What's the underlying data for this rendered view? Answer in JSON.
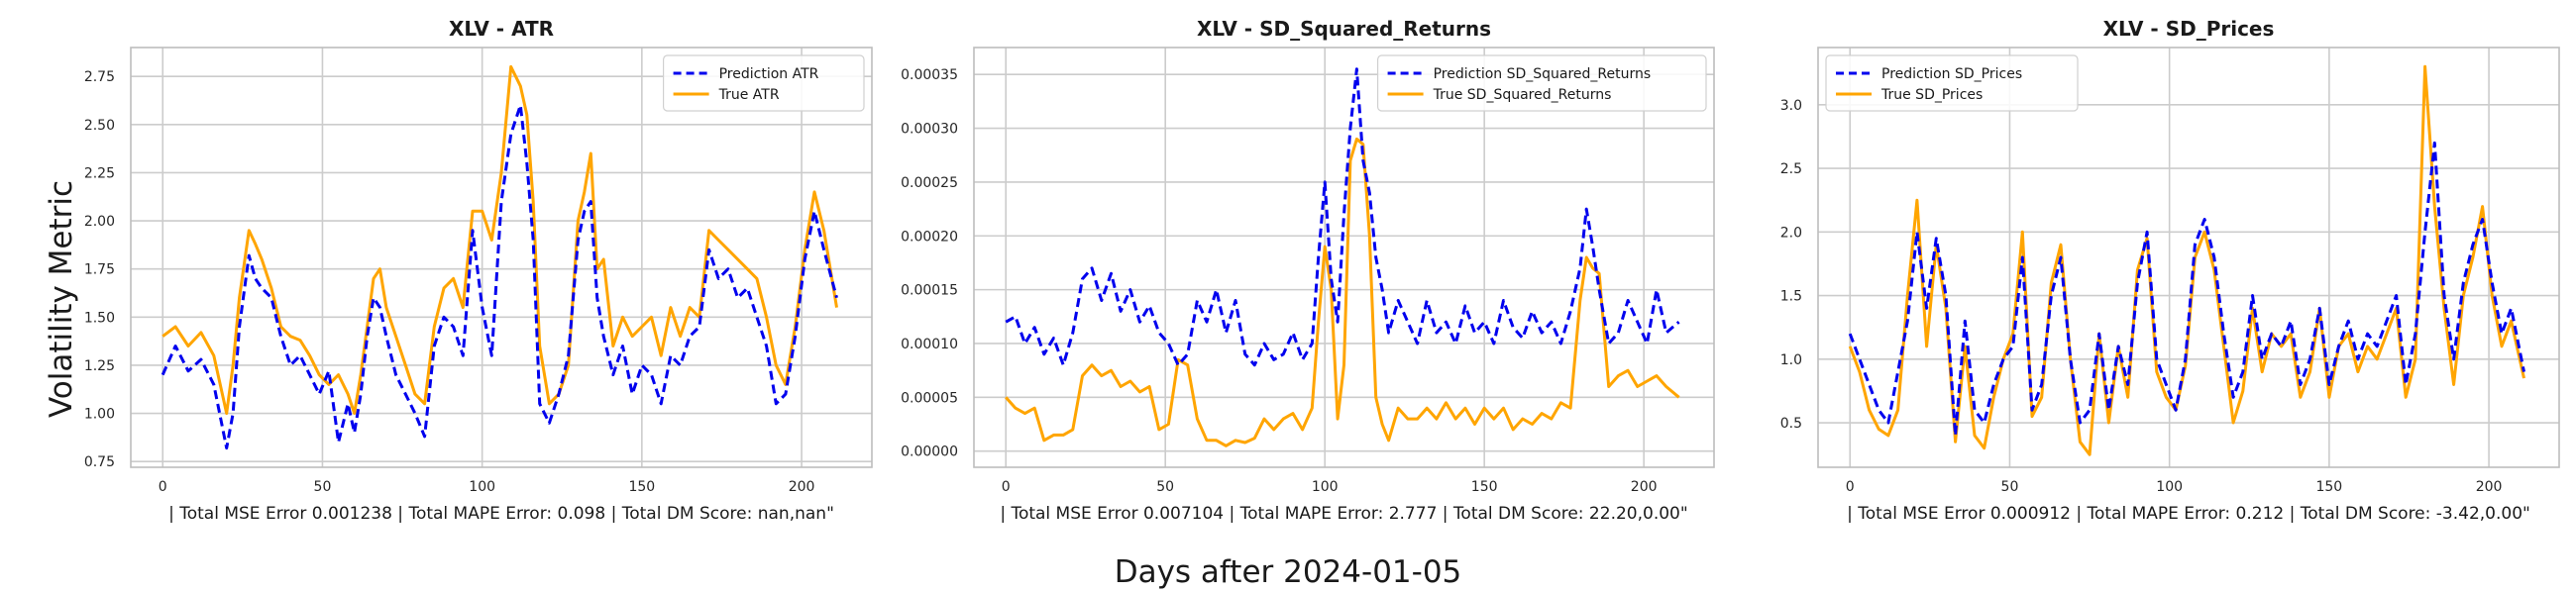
{
  "figure": {
    "supxlabel": "Days after 2024-01-05",
    "supylabel": "Volatility Metric"
  },
  "colors": {
    "prediction": "#0000ee",
    "true": "#ffa500",
    "grid": "#cccccc",
    "frame": "#bdbdbd"
  },
  "chart_data": [
    {
      "type": "line",
      "title": "XLV - ATR",
      "xlabel": "| Total MSE Error 0.001238 | Total MAPE Error: 0.098 | Total DM Score: nan,nan\"",
      "xlim": [
        -10,
        222
      ],
      "ylim": [
        0.72,
        2.9
      ],
      "xticks": [
        0,
        50,
        100,
        150,
        200
      ],
      "yticks": [
        0.75,
        1.0,
        1.25,
        1.5,
        1.75,
        2.0,
        2.25,
        2.5,
        2.75
      ],
      "ytick_labels": [
        "0.75",
        "1.00",
        "1.25",
        "1.50",
        "1.75",
        "2.00",
        "2.25",
        "2.50",
        "2.75"
      ],
      "grid": true,
      "legend_position": "top-right",
      "series": [
        {
          "name": "Prediction ATR",
          "style": "dashed",
          "color": "#0000ee",
          "x": [
            0,
            4,
            8,
            12,
            16,
            20,
            22,
            24,
            27,
            29,
            31,
            34,
            37,
            40,
            43,
            46,
            49,
            52,
            55,
            58,
            60,
            62,
            64,
            66,
            68,
            70,
            73,
            76,
            79,
            82,
            85,
            88,
            91,
            94,
            97,
            100,
            103,
            106,
            109,
            112,
            114,
            116,
            118,
            121,
            124,
            127,
            130,
            132,
            134,
            136,
            138,
            141,
            144,
            147,
            150,
            153,
            156,
            159,
            162,
            165,
            168,
            171,
            174,
            177,
            180,
            183,
            186,
            189,
            192,
            195,
            198,
            201,
            204,
            207,
            211
          ],
          "y": [
            1.2,
            1.35,
            1.22,
            1.28,
            1.15,
            0.82,
            1.0,
            1.45,
            1.82,
            1.7,
            1.65,
            1.6,
            1.4,
            1.25,
            1.3,
            1.2,
            1.1,
            1.22,
            0.85,
            1.05,
            0.9,
            1.1,
            1.4,
            1.6,
            1.55,
            1.4,
            1.2,
            1.1,
            1.0,
            0.88,
            1.35,
            1.5,
            1.45,
            1.3,
            1.95,
            1.55,
            1.3,
            2.1,
            2.45,
            2.6,
            2.3,
            1.9,
            1.05,
            0.95,
            1.1,
            1.3,
            1.9,
            2.05,
            2.1,
            1.6,
            1.4,
            1.2,
            1.35,
            1.1,
            1.25,
            1.2,
            1.05,
            1.3,
            1.25,
            1.4,
            1.45,
            1.85,
            1.7,
            1.75,
            1.6,
            1.65,
            1.5,
            1.35,
            1.05,
            1.1,
            1.4,
            1.8,
            2.05,
            1.85,
            1.6
          ]
        },
        {
          "name": "True ATR",
          "style": "solid",
          "color": "#ffa500",
          "x": [
            0,
            4,
            8,
            12,
            16,
            20,
            22,
            24,
            27,
            29,
            31,
            34,
            37,
            40,
            43,
            46,
            49,
            52,
            55,
            58,
            60,
            62,
            64,
            66,
            68,
            70,
            73,
            76,
            79,
            82,
            85,
            88,
            91,
            94,
            97,
            100,
            103,
            106,
            109,
            112,
            114,
            116,
            118,
            121,
            124,
            127,
            130,
            132,
            134,
            136,
            138,
            141,
            144,
            147,
            150,
            153,
            156,
            159,
            162,
            165,
            168,
            171,
            174,
            177,
            180,
            183,
            186,
            189,
            192,
            195,
            198,
            201,
            204,
            207,
            211
          ],
          "y": [
            1.4,
            1.45,
            1.35,
            1.42,
            1.3,
            1.0,
            1.25,
            1.6,
            1.95,
            1.88,
            1.8,
            1.65,
            1.45,
            1.4,
            1.38,
            1.3,
            1.2,
            1.15,
            1.2,
            1.1,
            1.0,
            1.2,
            1.45,
            1.7,
            1.75,
            1.55,
            1.4,
            1.25,
            1.1,
            1.05,
            1.45,
            1.65,
            1.7,
            1.55,
            2.05,
            2.05,
            1.9,
            2.25,
            2.8,
            2.7,
            2.55,
            2.1,
            1.35,
            1.05,
            1.1,
            1.25,
            2.0,
            2.15,
            2.35,
            1.75,
            1.8,
            1.35,
            1.5,
            1.4,
            1.45,
            1.5,
            1.3,
            1.55,
            1.4,
            1.55,
            1.5,
            1.95,
            1.9,
            1.85,
            1.8,
            1.75,
            1.7,
            1.5,
            1.25,
            1.15,
            1.45,
            1.85,
            2.15,
            1.95,
            1.55
          ]
        }
      ]
    },
    {
      "type": "line",
      "title": "XLV - SD_Squared_Returns",
      "xlabel": "| Total MSE Error 0.007104 | Total MAPE Error: 2.777 | Total DM Score: 22.20,0.00\"",
      "xlim": [
        -10,
        222
      ],
      "ylim": [
        -1.5e-05,
        0.000375
      ],
      "xticks": [
        0,
        50,
        100,
        150,
        200
      ],
      "yticks": [
        0,
        5e-05,
        0.0001,
        0.00015,
        0.0002,
        0.00025,
        0.0003,
        0.00035
      ],
      "ytick_labels": [
        "0.00000",
        "0.00005",
        "0.00010",
        "0.00015",
        "0.00020",
        "0.00025",
        "0.00030",
        "0.00035"
      ],
      "grid": true,
      "legend_position": "top-right",
      "series": [
        {
          "name": "Prediction SD_Squared_Returns",
          "style": "dashed",
          "color": "#0000ee",
          "x": [
            0,
            3,
            6,
            9,
            12,
            15,
            18,
            21,
            24,
            27,
            30,
            33,
            36,
            39,
            42,
            45,
            48,
            51,
            54,
            57,
            60,
            63,
            66,
            69,
            72,
            75,
            78,
            81,
            84,
            87,
            90,
            93,
            96,
            98,
            100,
            102,
            104,
            106,
            108,
            110,
            112,
            114,
            116,
            118,
            120,
            123,
            126,
            129,
            132,
            135,
            138,
            141,
            144,
            147,
            150,
            153,
            156,
            159,
            162,
            165,
            168,
            171,
            174,
            177,
            180,
            182,
            184,
            186,
            189,
            192,
            195,
            198,
            201,
            204,
            207,
            211
          ],
          "y": [
            0.00012,
            0.000125,
            0.0001,
            0.000115,
            9e-05,
            0.000105,
            8e-05,
            0.00011,
            0.00016,
            0.00017,
            0.00014,
            0.000165,
            0.00013,
            0.00015,
            0.00012,
            0.000135,
            0.00011,
            0.0001,
            8e-05,
            9e-05,
            0.00014,
            0.00012,
            0.00015,
            0.00011,
            0.00014,
            9e-05,
            8e-05,
            0.0001,
            8.5e-05,
            9e-05,
            0.00011,
            8.5e-05,
            0.0001,
            0.00018,
            0.00025,
            0.00016,
            0.00012,
            0.00022,
            0.0003,
            0.000355,
            0.00027,
            0.00024,
            0.00018,
            0.00015,
            0.00011,
            0.00014,
            0.00012,
            0.0001,
            0.00014,
            0.00011,
            0.00012,
            0.0001,
            0.000135,
            0.00011,
            0.00012,
            0.0001,
            0.00014,
            0.000115,
            0.000105,
            0.00013,
            0.00011,
            0.00012,
            0.0001,
            0.00013,
            0.00017,
            0.000225,
            0.00019,
            0.00015,
            0.0001,
            0.00011,
            0.00014,
            0.00012,
            0.0001,
            0.00015,
            0.00011,
            0.00012
          ]
        },
        {
          "name": "True SD_Squared_Returns",
          "style": "solid",
          "color": "#ffa500",
          "x": [
            0,
            3,
            6,
            9,
            12,
            15,
            18,
            21,
            24,
            27,
            30,
            33,
            36,
            39,
            42,
            45,
            48,
            51,
            54,
            57,
            60,
            63,
            66,
            69,
            72,
            75,
            78,
            81,
            84,
            87,
            90,
            93,
            96,
            98,
            100,
            102,
            104,
            106,
            108,
            110,
            112,
            114,
            116,
            118,
            120,
            123,
            126,
            129,
            132,
            135,
            138,
            141,
            144,
            147,
            150,
            153,
            156,
            159,
            162,
            165,
            168,
            171,
            174,
            177,
            180,
            182,
            184,
            186,
            189,
            192,
            195,
            198,
            201,
            204,
            207,
            211
          ],
          "y": [
            5e-05,
            4e-05,
            3.5e-05,
            4e-05,
            1e-05,
            1.5e-05,
            1.5e-05,
            2e-05,
            7e-05,
            8e-05,
            7e-05,
            7.5e-05,
            6e-05,
            6.5e-05,
            5.5e-05,
            6e-05,
            2e-05,
            2.5e-05,
            8.5e-05,
            8e-05,
            3e-05,
            1e-05,
            1e-05,
            5e-06,
            1e-05,
            8e-06,
            1.2e-05,
            3e-05,
            2e-05,
            3e-05,
            3.5e-05,
            2e-05,
            4e-05,
            0.00012,
            0.00019,
            0.00015,
            3e-05,
            8e-05,
            0.00027,
            0.00029,
            0.000285,
            0.0002,
            5e-05,
            2.5e-05,
            1e-05,
            4e-05,
            3e-05,
            3e-05,
            4e-05,
            3e-05,
            4.5e-05,
            3e-05,
            4e-05,
            2.5e-05,
            4e-05,
            3e-05,
            4e-05,
            2e-05,
            3e-05,
            2.5e-05,
            3.5e-05,
            3e-05,
            4.5e-05,
            4e-05,
            0.00014,
            0.00018,
            0.00017,
            0.000165,
            6e-05,
            7e-05,
            7.5e-05,
            6e-05,
            6.5e-05,
            7e-05,
            6e-05,
            5e-05
          ]
        }
      ]
    },
    {
      "type": "line",
      "title": "XLV - SD_Prices",
      "xlabel": "| Total MSE Error 0.000912 | Total MAPE Error: 0.212 | Total DM Score: -3.42,0.00\"",
      "xlim": [
        -10,
        222
      ],
      "ylim": [
        0.15,
        3.45
      ],
      "xticks": [
        0,
        50,
        100,
        150,
        200
      ],
      "yticks": [
        0.5,
        1.0,
        1.5,
        2.0,
        2.5,
        3.0
      ],
      "ytick_labels": [
        "0.5",
        "1.0",
        "1.5",
        "2.0",
        "2.5",
        "3.0"
      ],
      "grid": true,
      "legend_position": "top-left",
      "series": [
        {
          "name": "Prediction SD_Prices",
          "style": "dashed",
          "color": "#0000ee",
          "x": [
            0,
            3,
            6,
            9,
            12,
            15,
            18,
            21,
            24,
            27,
            30,
            33,
            36,
            39,
            42,
            45,
            48,
            51,
            54,
            57,
            60,
            63,
            66,
            69,
            72,
            75,
            78,
            81,
            84,
            87,
            90,
            93,
            96,
            99,
            102,
            105,
            108,
            111,
            114,
            117,
            120,
            123,
            126,
            129,
            132,
            135,
            138,
            141,
            144,
            147,
            150,
            153,
            156,
            159,
            162,
            165,
            168,
            171,
            174,
            177,
            180,
            183,
            186,
            189,
            192,
            195,
            198,
            201,
            204,
            207,
            211
          ],
          "y": [
            1.2,
            1.0,
            0.8,
            0.6,
            0.5,
            0.9,
            1.3,
            2.0,
            1.4,
            1.95,
            1.5,
            0.4,
            1.3,
            0.6,
            0.5,
            0.8,
            1.0,
            1.1,
            1.8,
            0.6,
            0.8,
            1.5,
            1.8,
            1.0,
            0.5,
            0.6,
            1.2,
            0.6,
            1.1,
            0.8,
            1.6,
            2.0,
            1.0,
            0.8,
            0.6,
            1.0,
            1.9,
            2.1,
            1.8,
            1.2,
            0.7,
            0.9,
            1.5,
            1.0,
            1.2,
            1.1,
            1.3,
            0.8,
            1.0,
            1.4,
            0.8,
            1.1,
            1.3,
            1.0,
            1.2,
            1.1,
            1.3,
            1.5,
            0.8,
            1.2,
            2.0,
            2.7,
            1.5,
            1.0,
            1.6,
            1.9,
            2.1,
            1.6,
            1.2,
            1.4,
            0.9
          ]
        },
        {
          "name": "True SD_Prices",
          "style": "solid",
          "color": "#ffa500",
          "x": [
            0,
            3,
            6,
            9,
            12,
            15,
            18,
            21,
            24,
            27,
            30,
            33,
            36,
            39,
            42,
            45,
            48,
            51,
            54,
            57,
            60,
            63,
            66,
            69,
            72,
            75,
            78,
            81,
            84,
            87,
            90,
            93,
            96,
            99,
            102,
            105,
            108,
            111,
            114,
            117,
            120,
            123,
            126,
            129,
            132,
            135,
            138,
            141,
            144,
            147,
            150,
            153,
            156,
            159,
            162,
            165,
            168,
            171,
            174,
            177,
            180,
            183,
            186,
            189,
            192,
            195,
            198,
            201,
            204,
            207,
            211
          ],
          "y": [
            1.1,
            0.9,
            0.6,
            0.45,
            0.4,
            0.6,
            1.5,
            2.25,
            1.1,
            1.9,
            1.4,
            0.35,
            1.1,
            0.4,
            0.3,
            0.7,
            1.0,
            1.2,
            2.0,
            0.55,
            0.7,
            1.6,
            1.9,
            1.0,
            0.35,
            0.25,
            1.2,
            0.5,
            1.1,
            0.7,
            1.7,
            1.95,
            0.9,
            0.7,
            0.6,
            0.95,
            1.8,
            2.0,
            1.7,
            1.1,
            0.5,
            0.75,
            1.4,
            0.9,
            1.2,
            1.1,
            1.2,
            0.7,
            0.9,
            1.4,
            0.7,
            1.1,
            1.2,
            0.9,
            1.1,
            1.0,
            1.2,
            1.4,
            0.7,
            1.0,
            3.3,
            2.2,
            1.4,
            0.8,
            1.5,
            1.8,
            2.2,
            1.5,
            1.1,
            1.3,
            0.85
          ]
        }
      ]
    }
  ]
}
